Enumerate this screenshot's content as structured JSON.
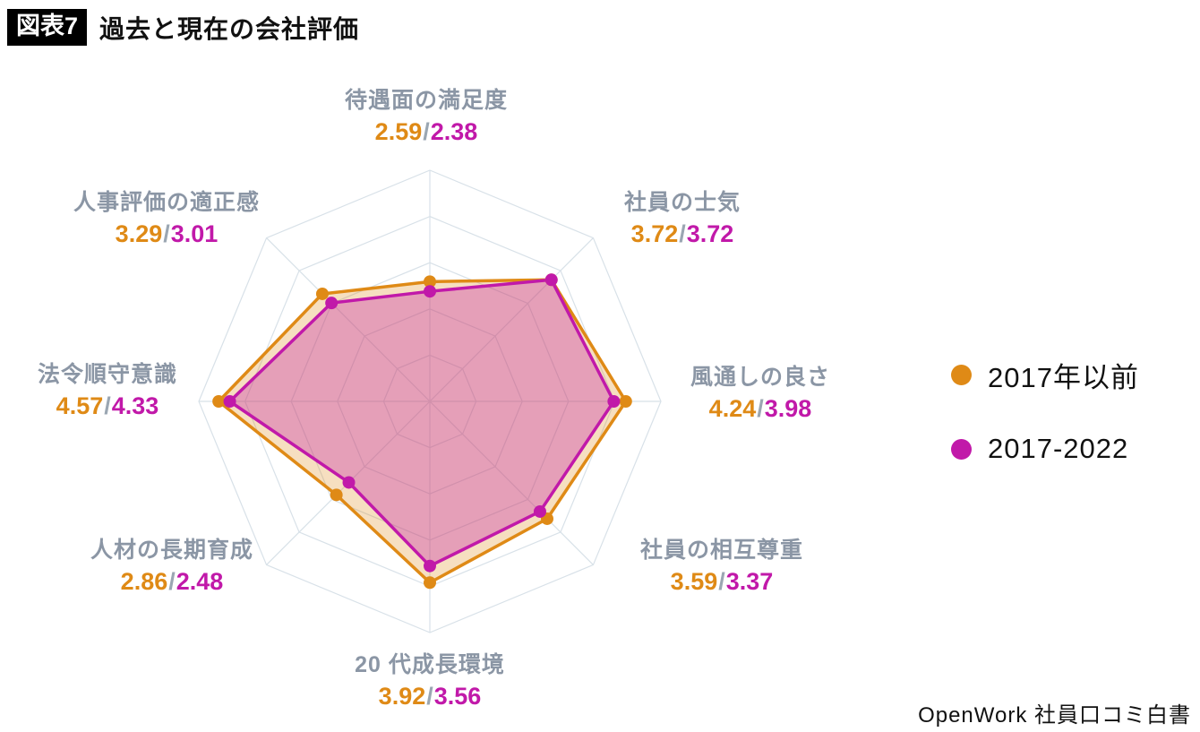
{
  "title": {
    "tag": "図表7",
    "text": "過去と現在の会社評価"
  },
  "source": "OpenWork 社員口コミ白書",
  "legend": [
    {
      "label": "2017年以前",
      "color": "#DF8A16"
    },
    {
      "label": "2017-2022",
      "color": "#C119A9"
    }
  ],
  "chart_data": {
    "type": "radar",
    "title": "過去と現在の会社評価",
    "categories": [
      "待遇面の満足度",
      "社員の士気",
      "風通しの良さ",
      "社員の相互尊重",
      "20 代成長環境",
      "人材の長期育成",
      "法令順守意識",
      "人事評価の適正感"
    ],
    "series": [
      {
        "name": "2017年以前",
        "color": "#DF8A16",
        "values": [
          2.59,
          3.72,
          4.24,
          3.59,
          3.92,
          2.86,
          4.57,
          3.29
        ]
      },
      {
        "name": "2017-2022",
        "color": "#C119A9",
        "values": [
          2.38,
          3.72,
          3.98,
          3.37,
          3.56,
          2.48,
          4.33,
          3.01
        ]
      }
    ],
    "rmax": 5,
    "rings": 5,
    "grid": true,
    "grid_color": "#D8E1E8",
    "legend_position": "right"
  }
}
